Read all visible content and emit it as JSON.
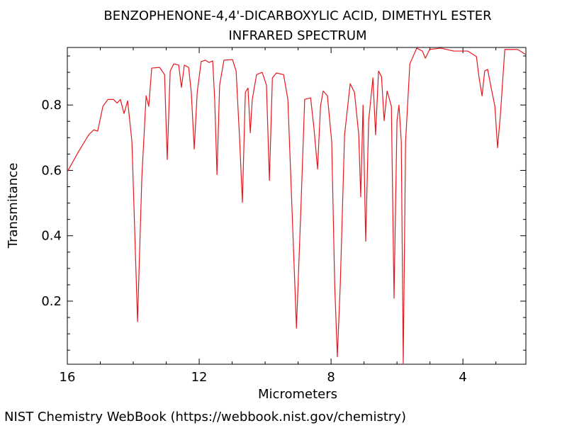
{
  "chart_data": {
    "type": "line",
    "title": "BENZOPHENONE-4,4'-DICARBOXYLIC ACID, DIMETHYL ESTER",
    "subtitle": "INFRARED SPECTRUM",
    "x_label": "Micrometers",
    "y_label": "Transmitance",
    "source": "NIST Chemistry WebBook (https://webbook.nist.gov/chemistry)",
    "color": "#e8171b",
    "xlim": [
      16,
      2.09
    ],
    "ylim": [
      0.007,
      0.976
    ],
    "xticks": [
      16,
      12,
      8,
      4
    ],
    "yticks": [
      0.2,
      0.4,
      0.6,
      0.8
    ],
    "xminorticks": [
      15,
      14,
      13,
      11,
      10,
      9,
      7,
      6,
      5,
      3
    ],
    "yminorticks": [
      0.05,
      0.1,
      0.15,
      0.25,
      0.3,
      0.35,
      0.45,
      0.5,
      0.55,
      0.65,
      0.7,
      0.75,
      0.85,
      0.9,
      0.95
    ],
    "grid": false,
    "x": [
      16,
      15.68,
      15.35,
      15.2,
      15.08,
      14.92,
      14.77,
      14.6,
      14.49,
      14.39,
      14.28,
      14.17,
      14.04,
      13.87,
      13.74,
      13.61,
      13.53,
      13.44,
      13.2,
      13.05,
      12.97,
      12.88,
      12.77,
      12.62,
      12.54,
      12.45,
      12.32,
      12.24,
      12.15,
      12.06,
      11.94,
      11.81,
      11.7,
      11.59,
      11.53,
      11.46,
      11.38,
      11.25,
      10.99,
      10.88,
      10.77,
      10.69,
      10.6,
      10.52,
      10.45,
      10.39,
      10.26,
      10.09,
      9.96,
      9.87,
      9.78,
      9.66,
      9.44,
      9.31,
      9.18,
      9.05,
      8.92,
      8.8,
      8.62,
      8.52,
      8.41,
      8.32,
      8.24,
      8.11,
      7.98,
      7.89,
      7.81,
      7.72,
      7.59,
      7.42,
      7.29,
      7.16,
      7.1,
      7.03,
      6.95,
      6.86,
      6.73,
      6.65,
      6.56,
      6.47,
      6.39,
      6.3,
      6.17,
      6.09,
      6.0,
      5.94,
      5.87,
      5.81,
      5.74,
      5.61,
      5.4,
      5.23,
      5.14,
      5.01,
      4.67,
      4.28,
      3.85,
      3.59,
      3.51,
      3.42,
      3.34,
      3.25,
      3.16,
      3.03,
      2.95,
      2.86,
      2.73,
      2.34,
      2.09
    ],
    "values": [
      0.596,
      0.654,
      0.709,
      0.724,
      0.72,
      0.796,
      0.817,
      0.817,
      0.806,
      0.817,
      0.774,
      0.813,
      0.687,
      0.137,
      0.578,
      0.828,
      0.796,
      0.913,
      0.915,
      0.893,
      0.633,
      0.904,
      0.926,
      0.922,
      0.854,
      0.922,
      0.915,
      0.839,
      0.665,
      0.839,
      0.933,
      0.937,
      0.93,
      0.935,
      0.817,
      0.587,
      0.861,
      0.937,
      0.939,
      0.904,
      0.687,
      0.502,
      0.839,
      0.852,
      0.715,
      0.817,
      0.893,
      0.9,
      0.861,
      0.569,
      0.883,
      0.898,
      0.893,
      0.817,
      0.469,
      0.117,
      0.469,
      0.817,
      0.822,
      0.73,
      0.604,
      0.796,
      0.843,
      0.828,
      0.687,
      0.252,
      0.03,
      0.252,
      0.709,
      0.865,
      0.839,
      0.709,
      0.519,
      0.8,
      0.383,
      0.752,
      0.883,
      0.709,
      0.904,
      0.887,
      0.752,
      0.843,
      0.796,
      0.209,
      0.752,
      0.8,
      0.687,
      0.01,
      0.687,
      0.926,
      0.974,
      0.965,
      0.943,
      0.97,
      0.974,
      0.965,
      0.965,
      0.948,
      0.883,
      0.828,
      0.904,
      0.909,
      0.861,
      0.796,
      0.669,
      0.774,
      0.97,
      0.97,
      0.954
    ]
  }
}
